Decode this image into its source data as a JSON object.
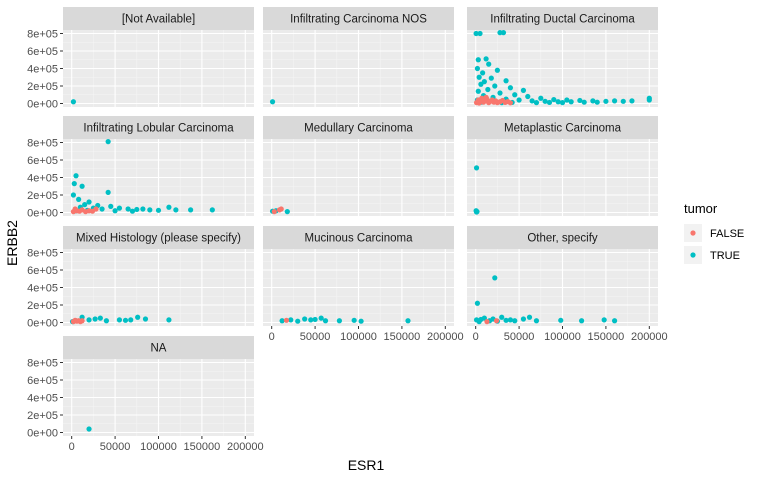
{
  "chart_data": {
    "type": "scatter",
    "xlabel": "ESR1",
    "ylabel": "ERBB2",
    "xlim": [
      -10000,
      210000
    ],
    "ylim": [
      -40000,
      840000
    ],
    "x_ticks": [
      0,
      50000,
      100000,
      150000,
      200000
    ],
    "x_tick_labels": [
      "0",
      "50000",
      "100000",
      "150000",
      "200000"
    ],
    "y_ticks": [
      0,
      200000,
      400000,
      600000,
      800000
    ],
    "y_tick_labels": [
      "0e+00",
      "2e+05",
      "4e+05",
      "6e+05",
      "8e+05"
    ],
    "grid": true,
    "panel_background": "#ebebeb",
    "strip_background": "#d9d9d9",
    "legend": {
      "title": "tumor",
      "position": "right",
      "entries": [
        {
          "label": "FALSE",
          "color": "#f8766d"
        },
        {
          "label": "TRUE",
          "color": "#00bfc4"
        }
      ]
    },
    "facets": [
      {
        "label": "[Not Available]",
        "points": [
          {
            "x": 2000,
            "y": 20000,
            "tumor": "TRUE"
          }
        ]
      },
      {
        "label": "Infiltrating Carcinoma NOS",
        "points": [
          {
            "x": 1000,
            "y": 20000,
            "tumor": "TRUE"
          }
        ]
      },
      {
        "label": "Infiltrating Ductal Carcinoma",
        "points": [
          {
            "x": 500,
            "y": 800000,
            "tumor": "TRUE"
          },
          {
            "x": 5000,
            "y": 800000,
            "tumor": "TRUE"
          },
          {
            "x": 28000,
            "y": 810000,
            "tumor": "TRUE"
          },
          {
            "x": 32000,
            "y": 810000,
            "tumor": "TRUE"
          },
          {
            "x": 3000,
            "y": 500000,
            "tumor": "TRUE"
          },
          {
            "x": 12000,
            "y": 510000,
            "tumor": "TRUE"
          },
          {
            "x": 15000,
            "y": 450000,
            "tumor": "TRUE"
          },
          {
            "x": 2000,
            "y": 400000,
            "tumor": "TRUE"
          },
          {
            "x": 8000,
            "y": 350000,
            "tumor": "TRUE"
          },
          {
            "x": 25000,
            "y": 380000,
            "tumor": "TRUE"
          },
          {
            "x": 4000,
            "y": 300000,
            "tumor": "TRUE"
          },
          {
            "x": 18000,
            "y": 290000,
            "tumor": "TRUE"
          },
          {
            "x": 10000,
            "y": 250000,
            "tumor": "TRUE"
          },
          {
            "x": 35000,
            "y": 260000,
            "tumor": "TRUE"
          },
          {
            "x": 6000,
            "y": 220000,
            "tumor": "TRUE"
          },
          {
            "x": 22000,
            "y": 200000,
            "tumor": "TRUE"
          },
          {
            "x": 40000,
            "y": 180000,
            "tumor": "TRUE"
          },
          {
            "x": 14000,
            "y": 160000,
            "tumor": "TRUE"
          },
          {
            "x": 55000,
            "y": 150000,
            "tumor": "TRUE"
          },
          {
            "x": 3000,
            "y": 140000,
            "tumor": "TRUE"
          },
          {
            "x": 28000,
            "y": 120000,
            "tumor": "TRUE"
          },
          {
            "x": 45000,
            "y": 100000,
            "tumor": "TRUE"
          },
          {
            "x": 9000,
            "y": 90000,
            "tumor": "TRUE"
          },
          {
            "x": 60000,
            "y": 80000,
            "tumor": "TRUE"
          },
          {
            "x": 20000,
            "y": 70000,
            "tumor": "TRUE"
          },
          {
            "x": 75000,
            "y": 60000,
            "tumor": "TRUE"
          },
          {
            "x": 12000,
            "y": 60000,
            "tumor": "TRUE"
          },
          {
            "x": 35000,
            "y": 50000,
            "tumor": "TRUE"
          },
          {
            "x": 90000,
            "y": 45000,
            "tumor": "TRUE"
          },
          {
            "x": 2000,
            "y": 40000,
            "tumor": "TRUE"
          },
          {
            "x": 50000,
            "y": 40000,
            "tumor": "TRUE"
          },
          {
            "x": 105000,
            "y": 40000,
            "tumor": "TRUE"
          },
          {
            "x": 65000,
            "y": 30000,
            "tumor": "TRUE"
          },
          {
            "x": 120000,
            "y": 35000,
            "tumor": "TRUE"
          },
          {
            "x": 80000,
            "y": 25000,
            "tumor": "TRUE"
          },
          {
            "x": 135000,
            "y": 30000,
            "tumor": "TRUE"
          },
          {
            "x": 95000,
            "y": 20000,
            "tumor": "TRUE"
          },
          {
            "x": 150000,
            "y": 25000,
            "tumor": "TRUE"
          },
          {
            "x": 110000,
            "y": 20000,
            "tumor": "TRUE"
          },
          {
            "x": 160000,
            "y": 30000,
            "tumor": "TRUE"
          },
          {
            "x": 125000,
            "y": 15000,
            "tumor": "TRUE"
          },
          {
            "x": 170000,
            "y": 25000,
            "tumor": "TRUE"
          },
          {
            "x": 140000,
            "y": 15000,
            "tumor": "TRUE"
          },
          {
            "x": 180000,
            "y": 30000,
            "tumor": "TRUE"
          },
          {
            "x": 200000,
            "y": 40000,
            "tumor": "TRUE"
          },
          {
            "x": 200000,
            "y": 60000,
            "tumor": "TRUE"
          },
          {
            "x": 7000,
            "y": 15000,
            "tumor": "TRUE"
          },
          {
            "x": 30000,
            "y": 10000,
            "tumor": "TRUE"
          },
          {
            "x": 42000,
            "y": 12000,
            "tumor": "TRUE"
          },
          {
            "x": 70000,
            "y": 10000,
            "tumor": "TRUE"
          },
          {
            "x": 85000,
            "y": 12000,
            "tumor": "TRUE"
          },
          {
            "x": 100000,
            "y": 10000,
            "tumor": "TRUE"
          },
          {
            "x": 1000,
            "y": 10000,
            "tumor": "FALSE"
          },
          {
            "x": 3000,
            "y": 40000,
            "tumor": "FALSE"
          },
          {
            "x": 5000,
            "y": 20000,
            "tumor": "FALSE"
          },
          {
            "x": 7000,
            "y": 60000,
            "tumor": "FALSE"
          },
          {
            "x": 9000,
            "y": 15000,
            "tumor": "FALSE"
          },
          {
            "x": 11000,
            "y": 30000,
            "tumor": "FALSE"
          },
          {
            "x": 13000,
            "y": 50000,
            "tumor": "FALSE"
          },
          {
            "x": 15000,
            "y": 10000,
            "tumor": "FALSE"
          },
          {
            "x": 17000,
            "y": 25000,
            "tumor": "FALSE"
          },
          {
            "x": 19000,
            "y": 40000,
            "tumor": "FALSE"
          },
          {
            "x": 21000,
            "y": 15000,
            "tumor": "FALSE"
          },
          {
            "x": 23000,
            "y": 30000,
            "tumor": "FALSE"
          },
          {
            "x": 25000,
            "y": 10000,
            "tumor": "FALSE"
          },
          {
            "x": 28000,
            "y": 20000,
            "tumor": "FALSE"
          },
          {
            "x": 31000,
            "y": 35000,
            "tumor": "FALSE"
          },
          {
            "x": 34000,
            "y": 12000,
            "tumor": "FALSE"
          },
          {
            "x": 37000,
            "y": 22000,
            "tumor": "FALSE"
          },
          {
            "x": 40000,
            "y": 8000,
            "tumor": "FALSE"
          },
          {
            "x": 4000,
            "y": 5000,
            "tumor": "FALSE"
          },
          {
            "x": 12000,
            "y": 70000,
            "tumor": "FALSE"
          }
        ]
      },
      {
        "label": "Infiltrating Lobular Carcinoma",
        "points": [
          {
            "x": 42000,
            "y": 810000,
            "tumor": "TRUE"
          },
          {
            "x": 5000,
            "y": 420000,
            "tumor": "TRUE"
          },
          {
            "x": 3000,
            "y": 330000,
            "tumor": "TRUE"
          },
          {
            "x": 12000,
            "y": 300000,
            "tumor": "TRUE"
          },
          {
            "x": 42000,
            "y": 230000,
            "tumor": "TRUE"
          },
          {
            "x": 2000,
            "y": 200000,
            "tumor": "TRUE"
          },
          {
            "x": 8000,
            "y": 150000,
            "tumor": "TRUE"
          },
          {
            "x": 20000,
            "y": 120000,
            "tumor": "TRUE"
          },
          {
            "x": 15000,
            "y": 90000,
            "tumor": "TRUE"
          },
          {
            "x": 30000,
            "y": 80000,
            "tumor": "TRUE"
          },
          {
            "x": 45000,
            "y": 70000,
            "tumor": "TRUE"
          },
          {
            "x": 10000,
            "y": 60000,
            "tumor": "TRUE"
          },
          {
            "x": 55000,
            "y": 50000,
            "tumor": "TRUE"
          },
          {
            "x": 25000,
            "y": 50000,
            "tumor": "TRUE"
          },
          {
            "x": 65000,
            "y": 40000,
            "tumor": "TRUE"
          },
          {
            "x": 35000,
            "y": 40000,
            "tumor": "TRUE"
          },
          {
            "x": 75000,
            "y": 35000,
            "tumor": "TRUE"
          },
          {
            "x": 82000,
            "y": 40000,
            "tumor": "TRUE"
          },
          {
            "x": 90000,
            "y": 30000,
            "tumor": "TRUE"
          },
          {
            "x": 100000,
            "y": 25000,
            "tumor": "TRUE"
          },
          {
            "x": 112000,
            "y": 60000,
            "tumor": "TRUE"
          },
          {
            "x": 120000,
            "y": 30000,
            "tumor": "TRUE"
          },
          {
            "x": 137000,
            "y": 30000,
            "tumor": "TRUE"
          },
          {
            "x": 162000,
            "y": 30000,
            "tumor": "TRUE"
          },
          {
            "x": 50000,
            "y": 20000,
            "tumor": "TRUE"
          },
          {
            "x": 70000,
            "y": 15000,
            "tumor": "TRUE"
          },
          {
            "x": 5000,
            "y": 20000,
            "tumor": "TRUE"
          },
          {
            "x": 18000,
            "y": 25000,
            "tumor": "TRUE"
          },
          {
            "x": 2000,
            "y": 10000,
            "tumor": "FALSE"
          },
          {
            "x": 4000,
            "y": 40000,
            "tumor": "FALSE"
          },
          {
            "x": 6000,
            "y": 20000,
            "tumor": "FALSE"
          },
          {
            "x": 9000,
            "y": 15000,
            "tumor": "FALSE"
          },
          {
            "x": 12000,
            "y": 30000,
            "tumor": "FALSE"
          },
          {
            "x": 16000,
            "y": 10000,
            "tumor": "FALSE"
          },
          {
            "x": 20000,
            "y": 20000,
            "tumor": "FALSE"
          },
          {
            "x": 24000,
            "y": 15000,
            "tumor": "FALSE"
          },
          {
            "x": 28000,
            "y": 40000,
            "tumor": "FALSE"
          }
        ]
      },
      {
        "label": "Medullary Carcinoma",
        "points": [
          {
            "x": 1000,
            "y": 15000,
            "tumor": "TRUE"
          },
          {
            "x": 5000,
            "y": 20000,
            "tumor": "TRUE"
          },
          {
            "x": 18000,
            "y": 10000,
            "tumor": "TRUE"
          },
          {
            "x": 3000,
            "y": 10000,
            "tumor": "FALSE"
          },
          {
            "x": 9000,
            "y": 30000,
            "tumor": "FALSE"
          },
          {
            "x": 11000,
            "y": 40000,
            "tumor": "FALSE"
          }
        ]
      },
      {
        "label": "Metaplastic Carcinoma",
        "points": [
          {
            "x": 1000,
            "y": 510000,
            "tumor": "TRUE"
          },
          {
            "x": 500,
            "y": 20000,
            "tumor": "TRUE"
          },
          {
            "x": 1500,
            "y": 10000,
            "tumor": "TRUE"
          },
          {
            "x": 1000,
            "y": 5000,
            "tumor": "TRUE"
          }
        ]
      },
      {
        "label": "Mixed Histology (please specify)",
        "points": [
          {
            "x": 1000,
            "y": 10000,
            "tumor": "TRUE"
          },
          {
            "x": 5000,
            "y": 20000,
            "tumor": "TRUE"
          },
          {
            "x": 12000,
            "y": 60000,
            "tumor": "TRUE"
          },
          {
            "x": 20000,
            "y": 30000,
            "tumor": "TRUE"
          },
          {
            "x": 27000,
            "y": 40000,
            "tumor": "TRUE"
          },
          {
            "x": 33000,
            "y": 50000,
            "tumor": "TRUE"
          },
          {
            "x": 40000,
            "y": 20000,
            "tumor": "TRUE"
          },
          {
            "x": 55000,
            "y": 30000,
            "tumor": "TRUE"
          },
          {
            "x": 62000,
            "y": 25000,
            "tumor": "TRUE"
          },
          {
            "x": 68000,
            "y": 30000,
            "tumor": "TRUE"
          },
          {
            "x": 76000,
            "y": 60000,
            "tumor": "TRUE"
          },
          {
            "x": 85000,
            "y": 40000,
            "tumor": "TRUE"
          },
          {
            "x": 112000,
            "y": 30000,
            "tumor": "TRUE"
          },
          {
            "x": 2000,
            "y": 10000,
            "tumor": "FALSE"
          },
          {
            "x": 4000,
            "y": 25000,
            "tumor": "FALSE"
          },
          {
            "x": 6000,
            "y": 15000,
            "tumor": "FALSE"
          },
          {
            "x": 8000,
            "y": 20000,
            "tumor": "FALSE"
          },
          {
            "x": 10000,
            "y": 10000,
            "tumor": "FALSE"
          },
          {
            "x": 12000,
            "y": 20000,
            "tumor": "FALSE"
          }
        ]
      },
      {
        "label": "Mucinous Carcinoma",
        "points": [
          {
            "x": 12000,
            "y": 20000,
            "tumor": "TRUE"
          },
          {
            "x": 22000,
            "y": 30000,
            "tumor": "TRUE"
          },
          {
            "x": 30000,
            "y": 15000,
            "tumor": "TRUE"
          },
          {
            "x": 38000,
            "y": 40000,
            "tumor": "TRUE"
          },
          {
            "x": 45000,
            "y": 30000,
            "tumor": "TRUE"
          },
          {
            "x": 50000,
            "y": 35000,
            "tumor": "TRUE"
          },
          {
            "x": 57000,
            "y": 50000,
            "tumor": "TRUE"
          },
          {
            "x": 62000,
            "y": 20000,
            "tumor": "TRUE"
          },
          {
            "x": 78000,
            "y": 20000,
            "tumor": "TRUE"
          },
          {
            "x": 95000,
            "y": 25000,
            "tumor": "TRUE"
          },
          {
            "x": 103000,
            "y": 15000,
            "tumor": "TRUE"
          },
          {
            "x": 157000,
            "y": 20000,
            "tumor": "TRUE"
          },
          {
            "x": 17000,
            "y": 25000,
            "tumor": "FALSE"
          }
        ]
      },
      {
        "label": "Other, specify",
        "points": [
          {
            "x": 22000,
            "y": 510000,
            "tumor": "TRUE"
          },
          {
            "x": 2000,
            "y": 220000,
            "tumor": "TRUE"
          },
          {
            "x": 1000,
            "y": 30000,
            "tumor": "TRUE"
          },
          {
            "x": 4000,
            "y": 10000,
            "tumor": "TRUE"
          },
          {
            "x": 10000,
            "y": 50000,
            "tumor": "TRUE"
          },
          {
            "x": 16000,
            "y": 20000,
            "tumor": "TRUE"
          },
          {
            "x": 20000,
            "y": 40000,
            "tumor": "TRUE"
          },
          {
            "x": 25000,
            "y": 15000,
            "tumor": "TRUE"
          },
          {
            "x": 30000,
            "y": 60000,
            "tumor": "TRUE"
          },
          {
            "x": 35000,
            "y": 25000,
            "tumor": "TRUE"
          },
          {
            "x": 40000,
            "y": 30000,
            "tumor": "TRUE"
          },
          {
            "x": 45000,
            "y": 20000,
            "tumor": "TRUE"
          },
          {
            "x": 55000,
            "y": 40000,
            "tumor": "TRUE"
          },
          {
            "x": 62000,
            "y": 60000,
            "tumor": "TRUE"
          },
          {
            "x": 70000,
            "y": 20000,
            "tumor": "TRUE"
          },
          {
            "x": 98000,
            "y": 25000,
            "tumor": "TRUE"
          },
          {
            "x": 122000,
            "y": 20000,
            "tumor": "TRUE"
          },
          {
            "x": 148000,
            "y": 30000,
            "tumor": "TRUE"
          },
          {
            "x": 160000,
            "y": 20000,
            "tumor": "TRUE"
          },
          {
            "x": 6000,
            "y": 35000,
            "tumor": "TRUE"
          },
          {
            "x": 13000,
            "y": 10000,
            "tumor": "FALSE"
          },
          {
            "x": 24000,
            "y": 20000,
            "tumor": "FALSE"
          }
        ]
      },
      {
        "label": "NA",
        "points": [
          {
            "x": 20000,
            "y": 40000,
            "tumor": "TRUE"
          }
        ]
      }
    ]
  }
}
